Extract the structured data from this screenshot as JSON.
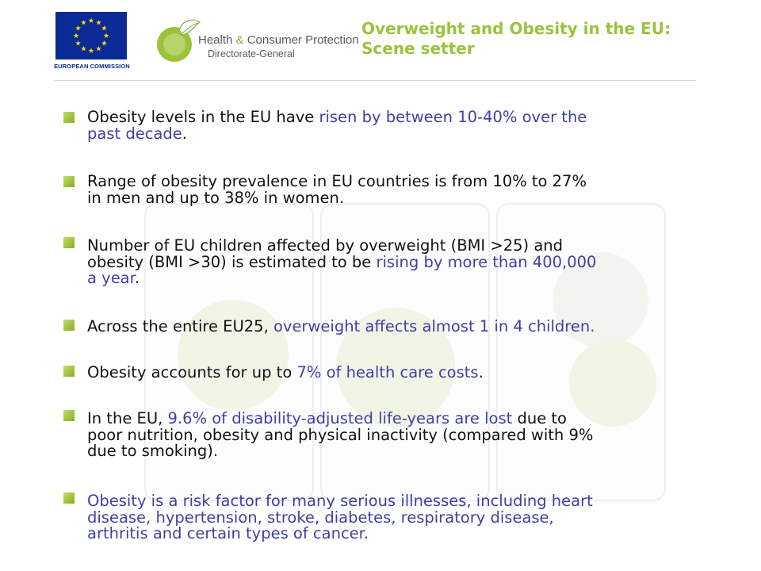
{
  "header": {
    "eu_caption": "EUROPEAN COMMISSION",
    "hcp_name_part1": "Health",
    "hcp_ampersand": "&",
    "hcp_name_part2": "Consumer Protection",
    "hcp_subtitle": "Directorate-General",
    "title_line1": "Overweight and Obesity in the EU:",
    "title_line2": "Scene setter"
  },
  "colors": {
    "title": "#9cc23c",
    "highlight": "#3f3fa6",
    "body_text": "#111111",
    "bullet_marker": "#9cc23c",
    "eu_blue": "#0a2a96",
    "eu_star": "#ffd700"
  },
  "bullets": [
    {
      "line1a": "Obesity levels in the EU have ",
      "line1b": "risen by between 10-40% over the",
      "line2": "past decade",
      "line2_end": "."
    },
    {
      "line1": "Range of obesity prevalence in EU countries is from 10% to 27%",
      "line2": "in men and up to 38% in women."
    },
    {
      "line1": "Number of EU children affected by overweight (BMI >25) and",
      "line2a": "obesity (BMI >30)  is estimated to be ",
      "line2b": "rising by more than 400,000",
      "line3": "a year",
      "line3_end": "."
    },
    {
      "part1": "Across the entire EU25, ",
      "part2": "overweight affects almost 1 in 4 children."
    },
    {
      "part1": "Obesity accounts for up to ",
      "part2": "7% of health care costs",
      "part3": "."
    },
    {
      "line1a": "In the EU, ",
      "line1b": "9.6% of disability-adjusted life-years are lost",
      "line1c": " due to",
      "line2": "poor nutrition, obesity and physical inactivity (compared with 9%",
      "line3": "due to smoking)."
    },
    {
      "line1": "Obesity is a risk factor for many serious illnesses, including heart",
      "line2": "disease, hypertension, stroke, diabetes, respiratory disease,",
      "line3": "arthritis and certain types of cancer."
    }
  ]
}
